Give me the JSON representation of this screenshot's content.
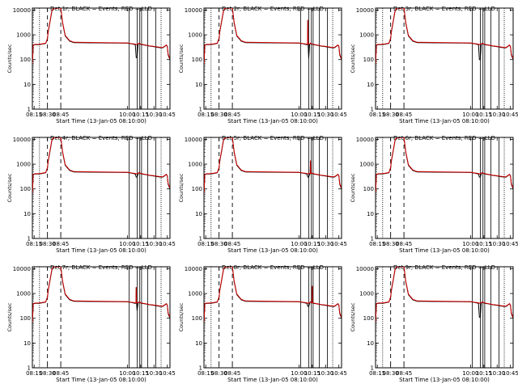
{
  "chart_data": {
    "type": "line",
    "layout": "3x3 grid",
    "y_scale": "log",
    "ylim": [
      1,
      12000
    ],
    "y_ticks": [
      1,
      10,
      100,
      1000,
      10000
    ],
    "y_tick_labels": [
      "1",
      "10",
      "100",
      "1000",
      "10000"
    ],
    "ylabel": "Counts/sec",
    "x_time_range": [
      "08:13",
      "10:48"
    ],
    "x_ticks": [
      "08:15",
      "08:30",
      "08:45",
      "10:00",
      "10:15",
      "10:30",
      "10:45"
    ],
    "xlabel": "Start Time (13-Jan-05 08:10:00)",
    "colors": {
      "events": "#000000",
      "lld": "#d40000",
      "markers": "#000000"
    },
    "dashed_markers": [
      "08:30",
      "08:45"
    ],
    "solid_markers": [
      "10:02",
      "10:11",
      "10:14",
      "10:16",
      "10:23",
      "10:32"
    ],
    "dotted_markers": [
      "08:21",
      "10:38"
    ],
    "series_template": {
      "times": [
        "08:13",
        "08:14",
        "08:16",
        "08:20",
        "08:24",
        "08:28",
        "08:30",
        "08:31",
        "08:33",
        "08:35",
        "08:37",
        "08:39",
        "08:43",
        "08:45",
        "08:47",
        "08:50",
        "08:55",
        "09:00",
        "10:00",
        "10:05",
        "10:09",
        "10:10",
        "10:11",
        "10:12",
        "10:13",
        "10:14",
        "10:16",
        "10:20",
        "10:25",
        "10:30",
        "10:35",
        "10:40",
        "10:44",
        "10:45",
        "10:46",
        "10:48"
      ],
      "events": [
        60,
        380,
        400,
        400,
        420,
        450,
        700,
        1400,
        3500,
        9000,
        12000,
        12000,
        12000,
        12000,
        3000,
        900,
        550,
        480,
        460,
        430,
        400,
        150,
        120,
        400,
        450,
        430,
        400,
        380,
        350,
        330,
        310,
        300,
        380,
        330,
        150,
        100
      ],
      "lld": [
        70,
        390,
        410,
        410,
        430,
        460,
        720,
        1500,
        3700,
        9500,
        12000,
        12000,
        12000,
        12000,
        3200,
        950,
        580,
        500,
        470,
        440,
        420,
        400,
        420,
        420,
        460,
        440,
        410,
        390,
        360,
        340,
        320,
        310,
        390,
        340,
        160,
        110
      ]
    },
    "panels": [
      {
        "title": "Det 1r, BLACK = Events, RED = LLD",
        "spike_time": "10:08",
        "spike_value": 0,
        "dip_value": 120
      },
      {
        "title": "Det 2r, BLACK = Events, RED = LLD",
        "spike_time": "10:10",
        "spike_value": 4000,
        "dip_value": 110
      },
      {
        "title": "Det 3r, BLACK = Events, RED = LLD",
        "spike_time": "10:08",
        "spike_value": 0,
        "dip_value": 100
      },
      {
        "title": "Det 4r, BLACK = Events, RED = LLD",
        "spike_time": "10:10",
        "spike_value": 0,
        "dip_value": 300
      },
      {
        "title": "Det 5r, BLACK = Events, RED = LLD",
        "spike_time": "10:13",
        "spike_value": 1400,
        "dip_value": 300
      },
      {
        "title": "Det 6r, BLACK = Events, RED = LLD",
        "spike_time": "10:10",
        "spike_value": 0,
        "dip_value": 300
      },
      {
        "title": "Det 7r, BLACK = Events, RED = LLD",
        "spike_time": "10:10",
        "spike_value": 1800,
        "dip_value": 200
      },
      {
        "title": "Det 8r, BLACK = Events, RED = LLD",
        "spike_time": "10:15",
        "spike_value": 2000,
        "dip_value": 300
      },
      {
        "title": "Det 9r, BLACK = Events, RED = LLD",
        "spike_time": "10:05",
        "spike_value": 0,
        "dip_value": 110
      }
    ]
  }
}
